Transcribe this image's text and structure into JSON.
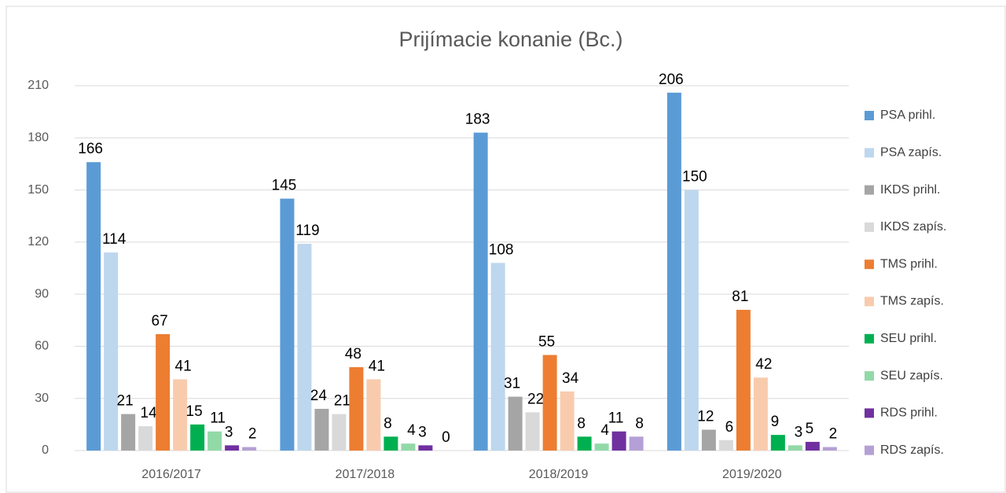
{
  "chart_data": {
    "type": "bar",
    "title": "Prijímacie konanie (Bc.)",
    "categories": [
      "2016/2017",
      "2017/2018",
      "2018/2019",
      "2019/2020"
    ],
    "series": [
      {
        "name": "PSA prihl.",
        "color": "#5b9bd5",
        "values": [
          166,
          145,
          183,
          206
        ]
      },
      {
        "name": "PSA zapís.",
        "color": "#bdd7ee",
        "values": [
          114,
          119,
          108,
          150
        ]
      },
      {
        "name": "IKDS prihl.",
        "color": "#a5a5a5",
        "values": [
          21,
          24,
          31,
          12
        ]
      },
      {
        "name": "IKDS zapís.",
        "color": "#d9d9d9",
        "values": [
          14,
          21,
          22,
          6
        ]
      },
      {
        "name": "TMS prihl.",
        "color": "#ed7d31",
        "values": [
          67,
          48,
          55,
          81
        ]
      },
      {
        "name": "TMS zapís.",
        "color": "#f8cbad",
        "values": [
          41,
          41,
          34,
          42
        ]
      },
      {
        "name": "SEU prihl.",
        "color": "#00b050",
        "values": [
          15,
          8,
          8,
          9
        ]
      },
      {
        "name": "SEU zapís.",
        "color": "#92d9a8",
        "values": [
          11,
          4,
          4,
          3
        ]
      },
      {
        "name": "RDS prihl.",
        "color": "#7030a0",
        "values": [
          3,
          3,
          11,
          5
        ]
      },
      {
        "name": "RDS zapís.",
        "color": "#b4a0d6",
        "values": [
          2,
          0,
          8,
          2
        ]
      }
    ],
    "ylim": [
      0,
      210
    ],
    "yticks": [
      0,
      30,
      60,
      90,
      120,
      150,
      180,
      210
    ],
    "grid": true,
    "legend": "right"
  }
}
